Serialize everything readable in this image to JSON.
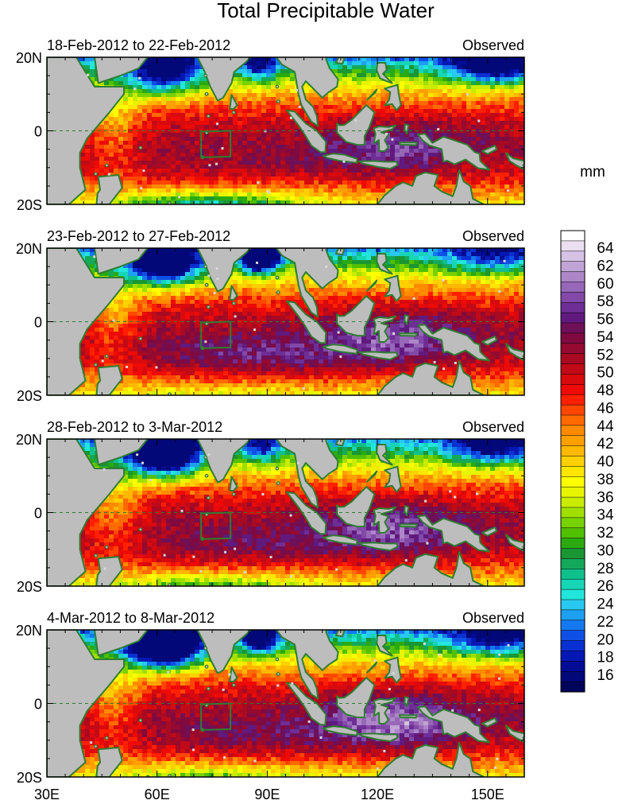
{
  "figure": {
    "title": "Total Precipitable Water",
    "unit": "mm"
  },
  "panels": [
    {
      "date_range": "18-Feb-2012 to 22-Feb-2012",
      "status": "Observed"
    },
    {
      "date_range": "23-Feb-2012 to 27-Feb-2012",
      "status": "Observed"
    },
    {
      "date_range": "28-Feb-2012 to 3-Mar-2012",
      "status": "Observed"
    },
    {
      "date_range": "4-Mar-2012 to 8-Mar-2012",
      "status": "Observed"
    }
  ],
  "map": {
    "lon_range": [
      30,
      160
    ],
    "lat_range": [
      -20,
      20
    ],
    "lat_ticks": [
      {
        "value": 20,
        "label": "20N"
      },
      {
        "value": 0,
        "label": "0"
      },
      {
        "value": -20,
        "label": "20S"
      }
    ],
    "lon_ticks": [
      {
        "value": 30,
        "label": "30E"
      },
      {
        "value": 60,
        "label": "60E"
      },
      {
        "value": 90,
        "label": "90E"
      },
      {
        "value": 120,
        "label": "120E"
      },
      {
        "value": 150,
        "label": "150E"
      }
    ],
    "equator_line": "dashed",
    "box_region": {
      "lon": [
        72,
        80
      ],
      "lat": [
        -7,
        0
      ]
    },
    "land_color": "#bdbdbd",
    "coast_color": "#2e7d32"
  },
  "colorbar": {
    "labels": [
      "64",
      "62",
      "60",
      "58",
      "56",
      "54",
      "52",
      "50",
      "48",
      "46",
      "44",
      "42",
      "40",
      "38",
      "36",
      "34",
      "32",
      "30",
      "28",
      "26",
      "24",
      "22",
      "20",
      "18",
      "16"
    ],
    "colors_top_to_bottom": [
      "#ffffff",
      "#eae0f0",
      "#d6c2e4",
      "#c1a4d6",
      "#ad86c8",
      "#9767b8",
      "#8249a8",
      "#6e2e96",
      "#601a7e",
      "#6e1058",
      "#800a40",
      "#950a30",
      "#a80a22",
      "#c00a18",
      "#d80a0e",
      "#ee0a06",
      "#ff2000",
      "#ff4600",
      "#ff6a00",
      "#ff8a00",
      "#ffa000",
      "#ffb800",
      "#ffd000",
      "#ffe600",
      "#ffff00",
      "#e8f500",
      "#c8eb00",
      "#a0e000",
      "#78d200",
      "#50c000",
      "#2aaa10",
      "#1a9632",
      "#14a85a",
      "#10c08a",
      "#16d6b6",
      "#22e6dc",
      "#28c8f0",
      "#1ea0f0",
      "#1478f0",
      "#0e50e6",
      "#0a30d2",
      "#0618b4",
      "#040c96",
      "#020878",
      "#01055a"
    ]
  }
}
